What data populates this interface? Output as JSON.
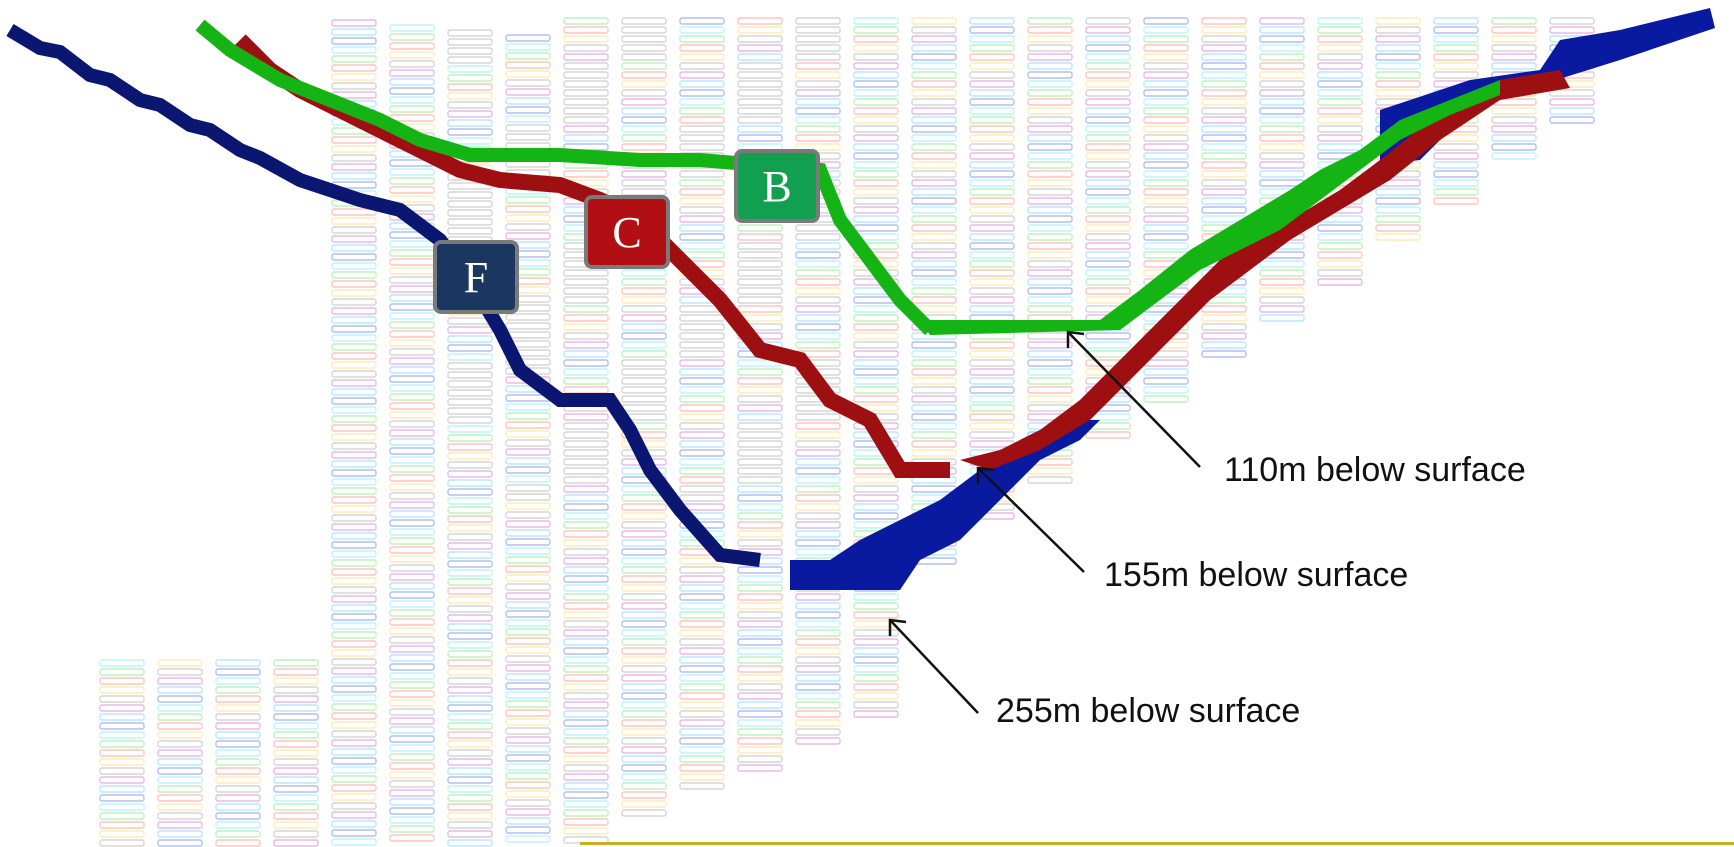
{
  "labels": {
    "B": {
      "text": "B",
      "color": "#12a050"
    },
    "C": {
      "text": "C",
      "color": "#b20f14"
    },
    "F": {
      "text": "F",
      "color": "#1b3660"
    }
  },
  "callouts": {
    "b_depth": "110m below surface",
    "c_depth": "155m below surface",
    "f_depth": "255m below surface"
  },
  "colors": {
    "pit_b": "#14b414",
    "pit_c": "#9e0f12",
    "pit_f": "#0a1aa0",
    "pit_f_dark": "#0b1670",
    "bottom_rule": "#c9b020"
  },
  "block_palette": [
    "#9aa8f0",
    "#a8f0ff",
    "#a8f0a8",
    "#ffb0b0",
    "#ffe6a0",
    "#c8c8c8",
    "#e0a0e0",
    "#a0e0ff"
  ]
}
